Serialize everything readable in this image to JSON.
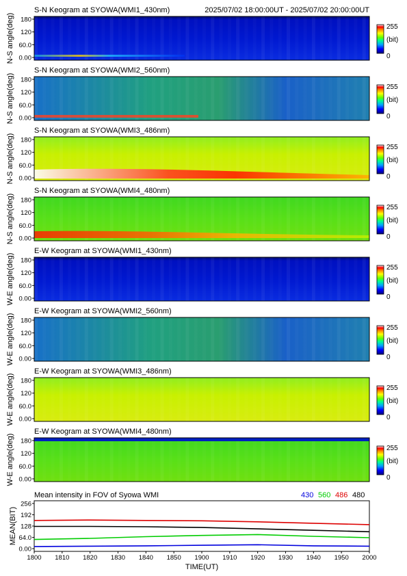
{
  "header": {
    "time_range": "2025/07/02 18:00:00UT - 2025/07/02 20:00:00UT"
  },
  "keograms": [
    {
      "title": "S-N Keogram at SYOWA(WMI1_430nm)",
      "ylabel": "N-S angle(deg)",
      "base": "blue",
      "feature": "faint-band"
    },
    {
      "title": "S-N Keogram at SYOWA(WMI2_560nm)",
      "ylabel": "N-S angle(deg)",
      "base": "mixed",
      "feature": "red-streak"
    },
    {
      "title": "S-N Keogram at SYOWA(WMI3_486nm)",
      "ylabel": "N-S angle(deg)",
      "base": "yellow",
      "feature": "bright-band"
    },
    {
      "title": "S-N Keogram at SYOWA(WMI4_480nm)",
      "ylabel": "N-S angle(deg)",
      "base": "green",
      "feature": "red-band"
    },
    {
      "title": "E-W Keogram at SYOWA(WMI1_430nm)",
      "ylabel": "W-E angle(deg)",
      "base": "blue",
      "feature": "none"
    },
    {
      "title": "E-W Keogram at SYOWA(WMI2_560nm)",
      "ylabel": "W-E angle(deg)",
      "base": "mixed",
      "feature": "none"
    },
    {
      "title": "E-W Keogram at SYOWA(WMI3_486nm)",
      "ylabel": "W-E angle(deg)",
      "base": "yellow",
      "feature": "none"
    },
    {
      "title": "E-W Keogram at SYOWA(WMI4_480nm)",
      "ylabel": "W-E angle(deg)",
      "base": "green",
      "feature": "top-stripe"
    }
  ],
  "keogram_yticks": [
    "180",
    "120",
    "60.0",
    "0.00"
  ],
  "colorbar": {
    "max": "255",
    "unit": "(bit)",
    "min": "0"
  },
  "chart_data": {
    "type": "line",
    "title": "Mean intensity in FOV of Syowa WMI",
    "xlabel": "TIME(UT)",
    "ylabel": "MEAN(BIT)",
    "xlim": [
      1800,
      2000
    ],
    "ylim": [
      0,
      256
    ],
    "x_ticks": [
      "1800",
      "1810",
      "1820",
      "1830",
      "1840",
      "1850",
      "1900",
      "1910",
      "1920",
      "1930",
      "1940",
      "1950",
      "2000"
    ],
    "y_ticks": [
      "256",
      "192",
      "128",
      "64.0",
      "0.00"
    ],
    "series": [
      {
        "name": "430",
        "color": "#0000dd",
        "x": [
          0,
          20,
          40,
          60,
          80,
          100,
          120
        ],
        "values": [
          12,
          14,
          16,
          19,
          22,
          16,
          14
        ]
      },
      {
        "name": "560",
        "color": "#00cc00",
        "x": [
          0,
          20,
          40,
          60,
          80,
          100,
          120
        ],
        "values": [
          52,
          58,
          68,
          75,
          80,
          70,
          62
        ]
      },
      {
        "name": "486",
        "color": "#dd0000",
        "x": [
          0,
          20,
          40,
          60,
          80,
          100,
          120
        ],
        "values": [
          160,
          162,
          160,
          158,
          152,
          144,
          136
        ]
      },
      {
        "name": "480",
        "color": "#000000",
        "x": [
          0,
          20,
          40,
          60,
          80,
          100,
          120
        ],
        "values": [
          126,
          126,
          124,
          120,
          112,
          104,
          96
        ]
      }
    ]
  }
}
